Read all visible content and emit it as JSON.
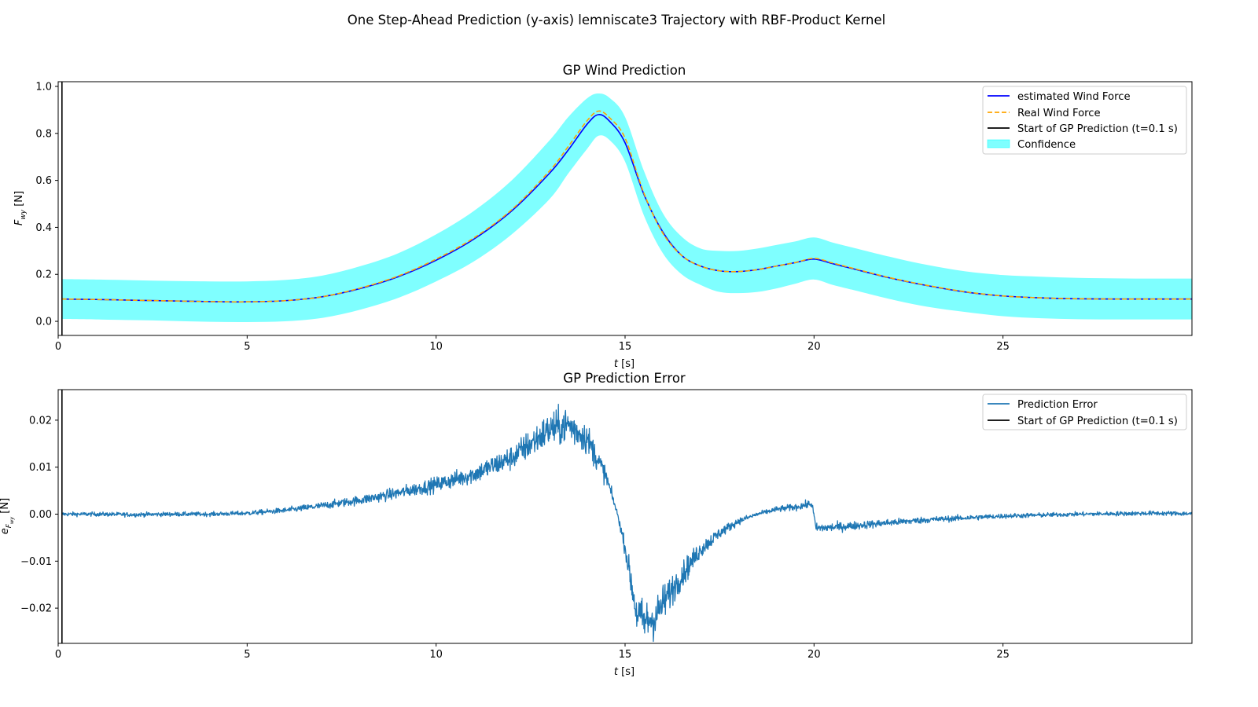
{
  "figure": {
    "suptitle": "One Step-Ahead Prediction (y-axis) lemniscate3 Trajectory with RBF-Product Kernel"
  },
  "colors": {
    "estimated": "#0000ff",
    "real": "#ffa500",
    "start": "#000000",
    "confidence": "#00ffff",
    "error": "#1f77b4"
  },
  "chart_data": [
    {
      "type": "line",
      "title": "GP Wind Prediction",
      "xlabel_main": "t",
      "xlabel_unit": " [s]",
      "ylabel_main": "F",
      "ylabel_sub": "wy",
      "ylabel_unit": " [N]",
      "xlim": [
        0,
        30
      ],
      "ylim": [
        -0.06,
        1.02
      ],
      "xticks": [
        0,
        5,
        10,
        15,
        20,
        25
      ],
      "xtick_labels": [
        "0",
        "5",
        "10",
        "15",
        "20",
        "25"
      ],
      "yticks": [
        0.0,
        0.2,
        0.4,
        0.6,
        0.8,
        1.0
      ],
      "ytick_labels": [
        "0.0",
        "0.2",
        "0.4",
        "0.6",
        "0.8",
        "1.0"
      ],
      "legend_position": "top-right",
      "legend": [
        "estimated Wind Force",
        "Real Wind Force",
        "Start of GP Prediction (t=0.1 s)",
        "Confidence"
      ],
      "start_line_t": 0.1,
      "x": [
        0.1,
        1,
        2,
        3,
        4,
        5,
        6,
        7,
        8,
        9,
        10,
        11,
        12,
        13,
        13.5,
        14,
        14.3,
        14.6,
        15,
        15.5,
        16,
        16.5,
        17,
        17.5,
        18,
        18.5,
        19,
        19.5,
        20,
        20.5,
        21,
        22,
        23,
        24,
        25,
        26,
        27,
        28,
        29,
        30
      ],
      "series": [
        {
          "name": "estimated Wind Force",
          "style": "solid",
          "values": [
            0.095,
            0.093,
            0.09,
            0.087,
            0.084,
            0.083,
            0.088,
            0.105,
            0.14,
            0.19,
            0.26,
            0.35,
            0.47,
            0.63,
            0.73,
            0.84,
            0.88,
            0.85,
            0.76,
            0.54,
            0.38,
            0.28,
            0.235,
            0.215,
            0.212,
            0.22,
            0.235,
            0.25,
            0.265,
            0.245,
            0.225,
            0.185,
            0.152,
            0.125,
            0.108,
            0.1,
            0.096,
            0.095,
            0.095,
            0.095
          ]
        },
        {
          "name": "Real Wind Force",
          "style": "dashed",
          "values": [
            0.095,
            0.093,
            0.09,
            0.087,
            0.084,
            0.083,
            0.088,
            0.105,
            0.142,
            0.193,
            0.265,
            0.355,
            0.475,
            0.64,
            0.745,
            0.855,
            0.895,
            0.865,
            0.78,
            0.545,
            0.375,
            0.28,
            0.235,
            0.215,
            0.212,
            0.22,
            0.235,
            0.25,
            0.268,
            0.248,
            0.227,
            0.186,
            0.153,
            0.126,
            0.108,
            0.1,
            0.096,
            0.095,
            0.095,
            0.095
          ]
        }
      ],
      "confidence": {
        "name": "Confidence",
        "upper": [
          0.18,
          0.178,
          0.175,
          0.172,
          0.17,
          0.17,
          0.176,
          0.195,
          0.235,
          0.29,
          0.37,
          0.47,
          0.6,
          0.77,
          0.87,
          0.95,
          0.97,
          0.95,
          0.87,
          0.64,
          0.46,
          0.36,
          0.31,
          0.3,
          0.3,
          0.31,
          0.325,
          0.34,
          0.357,
          0.335,
          0.315,
          0.275,
          0.24,
          0.213,
          0.197,
          0.19,
          0.185,
          0.183,
          0.182,
          0.182
        ],
        "lower": [
          0.01,
          0.008,
          0.005,
          0.002,
          -0.002,
          -0.003,
          0.0,
          0.015,
          0.05,
          0.1,
          0.17,
          0.255,
          0.37,
          0.52,
          0.63,
          0.735,
          0.79,
          0.77,
          0.68,
          0.45,
          0.29,
          0.2,
          0.155,
          0.125,
          0.12,
          0.125,
          0.14,
          0.16,
          0.178,
          0.155,
          0.135,
          0.095,
          0.062,
          0.04,
          0.022,
          0.013,
          0.009,
          0.008,
          0.008,
          0.008
        ]
      }
    },
    {
      "type": "line",
      "title": "GP Prediction Error",
      "xlabel_main": "t",
      "xlabel_unit": " [s]",
      "ylabel_main": "e",
      "ylabel_sub": "F",
      "ylabel_subsub": "wy",
      "ylabel_unit": " [N]",
      "xlim": [
        0,
        30
      ],
      "ylim": [
        -0.0275,
        0.0265
      ],
      "xticks": [
        0,
        5,
        10,
        15,
        20,
        25
      ],
      "xtick_labels": [
        "0",
        "5",
        "10",
        "15",
        "20",
        "25"
      ],
      "yticks": [
        -0.02,
        -0.01,
        0.0,
        0.01,
        0.02
      ],
      "ytick_labels": [
        "−0.02",
        "−0.01",
        "0.00",
        "0.01",
        "0.02"
      ],
      "legend_position": "top-right",
      "legend": [
        "Prediction Error",
        "Start of GP Prediction (t=0.1 s)"
      ],
      "start_line_t": 0.1,
      "noise_amplitude": "proportional to trend",
      "x": [
        0.1,
        1,
        2,
        3,
        4,
        5,
        6,
        7,
        8,
        9,
        10,
        11,
        12,
        12.5,
        13,
        13.5,
        14,
        14.5,
        14.8,
        15,
        15.3,
        15.5,
        15.8,
        16,
        16.5,
        17,
        17.5,
        18,
        18.5,
        19,
        19.5,
        19.95,
        20.05,
        20.5,
        21,
        22,
        23,
        24,
        25,
        26,
        27,
        28,
        29,
        30
      ],
      "series": [
        {
          "name": "Prediction Error",
          "values": [
            0.0,
            0.0,
            -0.0001,
            0.0,
            0.0,
            0.0002,
            0.0008,
            0.0018,
            0.003,
            0.0045,
            0.0063,
            0.0085,
            0.012,
            0.015,
            0.018,
            0.019,
            0.016,
            0.008,
            0.0,
            -0.007,
            -0.021,
            -0.023,
            -0.022,
            -0.019,
            -0.013,
            -0.0075,
            -0.004,
            -0.0015,
            0.0,
            0.001,
            0.0015,
            0.0022,
            -0.003,
            -0.0028,
            -0.0025,
            -0.0018,
            -0.0012,
            -0.0008,
            -0.0004,
            -0.0002,
            0.0,
            0.0001,
            0.0002,
            0.0001
          ]
        }
      ]
    }
  ]
}
